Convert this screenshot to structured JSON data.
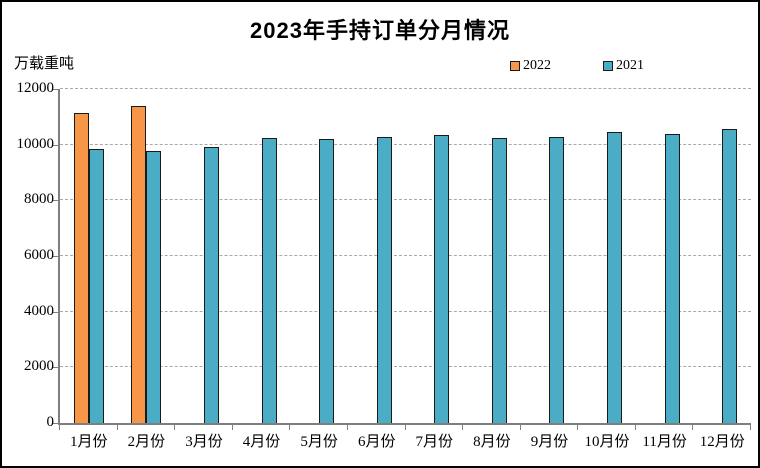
{
  "window": {
    "background_color": "#ffffff",
    "border_color": "#000000"
  },
  "chart_data": {
    "type": "bar",
    "title": "2023年手持订单分月情况",
    "ylabel": "万载重吨",
    "xlabel": "",
    "categories": [
      "1月份",
      "2月份",
      "3月份",
      "4月份",
      "5月份",
      "6月份",
      "7月份",
      "8月份",
      "9月份",
      "10月份",
      "11月份",
      "12月份"
    ],
    "series": [
      {
        "name": "2022",
        "color": "#F79646",
        "values": [
          11150,
          11400,
          null,
          null,
          null,
          null,
          null,
          null,
          null,
          null,
          null,
          null
        ]
      },
      {
        "name": "2021",
        "color": "#4BACC6",
        "values": [
          9860,
          9790,
          9900,
          10250,
          10210,
          10290,
          10360,
          10230,
          10270,
          10450,
          10370,
          10560
        ]
      }
    ],
    "ylim": [
      0,
      12000
    ],
    "yticks": [
      0,
      2000,
      4000,
      6000,
      8000,
      10000,
      12000
    ],
    "grid": "horizontal-dashed",
    "legend_position": "top-right",
    "bar_border_color": "#1a1a1a",
    "gridline_color": "#a9a9a9",
    "axis_color": "#7f7f7f",
    "text_color": "#000000"
  }
}
